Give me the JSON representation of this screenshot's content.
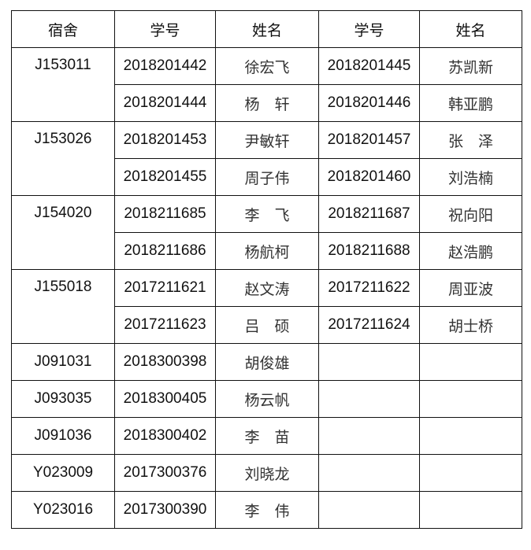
{
  "headers": [
    "宿舍",
    "学号",
    "姓名",
    "学号",
    "姓名"
  ],
  "groups": [
    {
      "dorm": "J153011",
      "rows": [
        [
          "2018201442",
          "徐宏飞",
          "2018201445",
          "苏凯新"
        ],
        [
          "2018201444",
          "杨　轩",
          "2018201446",
          "韩亚鹏"
        ]
      ]
    },
    {
      "dorm": "J153026",
      "rows": [
        [
          "2018201453",
          "尹敏轩",
          "2018201457",
          "张　泽"
        ],
        [
          "2018201455",
          "周子伟",
          "2018201460",
          "刘浩楠"
        ]
      ]
    },
    {
      "dorm": "J154020",
      "rows": [
        [
          "2018211685",
          "李　飞",
          "2018211687",
          "祝向阳"
        ],
        [
          "2018211686",
          "杨航柯",
          "2018211688",
          "赵浩鹏"
        ]
      ]
    },
    {
      "dorm": "J155018",
      "rows": [
        [
          "2017211621",
          "赵文涛",
          "2017211622",
          "周亚波"
        ],
        [
          "2017211623",
          "吕　硕",
          "2017211624",
          "胡士桥"
        ]
      ]
    }
  ],
  "singles": [
    {
      "dorm": "J091031",
      "id": "2018300398",
      "name": "胡俊雄"
    },
    {
      "dorm": "J093035",
      "id": "2018300405",
      "name": "杨云帆"
    },
    {
      "dorm": "J091036",
      "id": "2018300402",
      "name": "李　苗"
    },
    {
      "dorm": "Y023009",
      "id": "2017300376",
      "name": "刘晓龙"
    },
    {
      "dorm": "Y023016",
      "id": "2017300390",
      "name": "李　伟"
    }
  ]
}
